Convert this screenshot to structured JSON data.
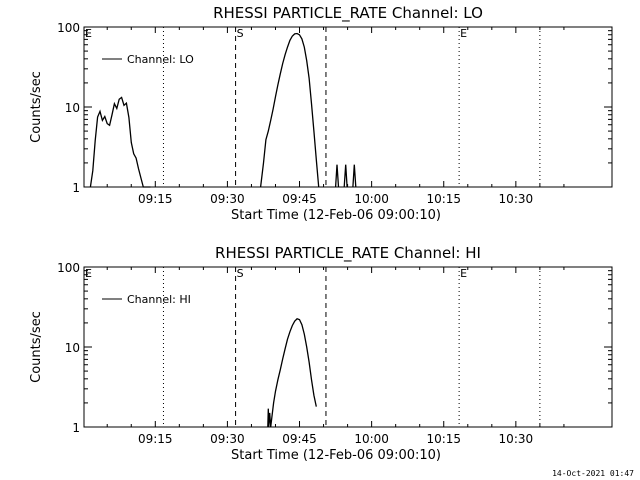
{
  "footer": {
    "timestamp": "14-Oct-2021 01:47"
  },
  "chart_data": [
    {
      "type": "line",
      "title": "RHESSI PARTICLE_RATE Channel: LO",
      "xlabel": "Start Time (12-Feb-06 09:00:10)",
      "ylabel": "Counts/sec",
      "y_scale": "log",
      "ylim": [
        1,
        100
      ],
      "xlim_minutes": [
        0.17,
        110
      ],
      "x_ticks": [
        "09:15",
        "09:30",
        "09:45",
        "10:00",
        "10:15",
        "10:30"
      ],
      "x_tick_minutes": [
        15,
        30,
        45,
        60,
        75,
        90
      ],
      "y_ticks": [
        "1",
        "10",
        "100"
      ],
      "legend": {
        "label": "Channel: LO",
        "position": "top-left"
      },
      "markers": [
        {
          "label": "E",
          "minute": 0.17,
          "style": "dotted"
        },
        {
          "label": "",
          "minute": 16.7,
          "style": "dotted"
        },
        {
          "label": "S",
          "minute": 31.7,
          "style": "dashed"
        },
        {
          "label": "",
          "minute": 50.5,
          "style": "dashed"
        },
        {
          "label": "E",
          "minute": 78.2,
          "style": "dotted"
        },
        {
          "label": "",
          "minute": 95.0,
          "style": "dotted"
        }
      ],
      "series": [
        {
          "name": "Channel: LO",
          "segments": [
            {
              "x": [
                1.5,
                2.0,
                2.5,
                3.0,
                3.5,
                4.0,
                4.5,
                5.0,
                5.5,
                6.0,
                6.5,
                7.0,
                7.5,
                8.0,
                8.5,
                9.0,
                9.5,
                10.0,
                10.5,
                11.0,
                11.5,
                12.0,
                12.5,
                13.0,
                13.5,
                14.0
              ],
              "y": [
                1,
                1.6,
                3.8,
                7.5,
                8.8,
                6.8,
                7.6,
                6.2,
                5.9,
                8.0,
                11.0,
                9.6,
                12.5,
                13.2,
                10.5,
                11.2,
                7.4,
                3.6,
                2.6,
                2.3,
                1.7,
                1.3,
                1.0,
                1.0,
                1.0,
                1.0
              ]
            },
            {
              "x": [
                36.9,
                37.5,
                38.0,
                38.5,
                39.0,
                39.5,
                40.0,
                40.5,
                41.0,
                41.5,
                42.0,
                42.5,
                43.0,
                43.5,
                44.0,
                44.5,
                45.0,
                45.5,
                46.0,
                46.5,
                47.0,
                47.5,
                48.0,
                48.5,
                49.0
              ],
              "y": [
                1.0,
                2.0,
                3.9,
                5.0,
                6.8,
                9.4,
                13.5,
                19.0,
                26.0,
                35.0,
                45.0,
                56.0,
                68.0,
                77.0,
                82.0,
                83.0,
                80.0,
                71.0,
                56.0,
                38.0,
                23.0,
                11.0,
                5.0,
                2.2,
                1.0
              ]
            },
            {
              "x": [
                52.5,
                52.8,
                53.1
              ],
              "y": [
                1.0,
                1.9,
                1.0
              ]
            },
            {
              "x": [
                54.3,
                54.6,
                54.9
              ],
              "y": [
                1.0,
                1.9,
                1.0
              ]
            },
            {
              "x": [
                56.1,
                56.4,
                56.7
              ],
              "y": [
                1.0,
                1.9,
                1.0
              ]
            }
          ]
        }
      ]
    },
    {
      "type": "line",
      "title": "RHESSI PARTICLE_RATE Channel: HI",
      "xlabel": "Start Time (12-Feb-06 09:00:10)",
      "ylabel": "Counts/sec",
      "y_scale": "log",
      "ylim": [
        1,
        100
      ],
      "xlim_minutes": [
        0.17,
        110
      ],
      "x_ticks": [
        "09:15",
        "09:30",
        "09:45",
        "10:00",
        "10:15",
        "10:30"
      ],
      "x_tick_minutes": [
        15,
        30,
        45,
        60,
        75,
        90
      ],
      "y_ticks": [
        "1",
        "10",
        "100"
      ],
      "legend": {
        "label": "Channel: HI",
        "position": "top-left"
      },
      "markers": [
        {
          "label": "E",
          "minute": 0.17,
          "style": "dotted"
        },
        {
          "label": "",
          "minute": 16.7,
          "style": "dotted"
        },
        {
          "label": "S",
          "minute": 31.7,
          "style": "dashed"
        },
        {
          "label": "",
          "minute": 50.5,
          "style": "dashed"
        },
        {
          "label": "E",
          "minute": 78.2,
          "style": "dotted"
        },
        {
          "label": "",
          "minute": 95.0,
          "style": "dotted"
        }
      ],
      "series": [
        {
          "name": "Channel: HI",
          "segments": [
            {
              "x": [
                38.4,
                38.5,
                38.6,
                38.8,
                39.0,
                39.3,
                39.6,
                40.0,
                40.5,
                41.0,
                41.5,
                42.0,
                42.5,
                43.0,
                43.5,
                44.0,
                44.5,
                45.0,
                45.5,
                46.0,
                46.5,
                47.0,
                47.5,
                48.0,
                48.5
              ],
              "y": [
                1.0,
                1.7,
                1.0,
                1.5,
                1.0,
                1.4,
                2.0,
                2.8,
                3.9,
                5.2,
                7.1,
                9.5,
                12.5,
                15.5,
                18.5,
                21.0,
                22.5,
                22.0,
                19.0,
                14.5,
                10.0,
                6.5,
                3.9,
                2.5,
                1.8
              ]
            }
          ]
        }
      ]
    }
  ]
}
